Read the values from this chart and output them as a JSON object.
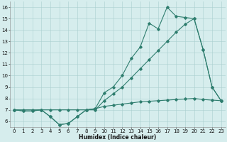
{
  "xlabel": "Humidex (Indice chaleur)",
  "x_values": [
    0,
    1,
    2,
    3,
    4,
    5,
    6,
    7,
    8,
    9,
    10,
    11,
    12,
    13,
    14,
    15,
    16,
    17,
    18,
    19,
    20,
    21,
    22,
    23
  ],
  "y_jagged": [
    7.0,
    6.9,
    6.9,
    7.0,
    6.4,
    5.7,
    5.8,
    6.4,
    7.0,
    7.1,
    8.5,
    9.0,
    10.0,
    11.5,
    12.5,
    14.6,
    14.1,
    16.0,
    15.2,
    15.1,
    15.0,
    12.3,
    9.0,
    7.8
  ],
  "y_diagonal": [
    7.0,
    7.0,
    7.0,
    7.0,
    7.0,
    7.0,
    7.0,
    7.0,
    7.0,
    7.0,
    7.8,
    8.4,
    9.0,
    9.8,
    10.6,
    11.4,
    12.2,
    13.0,
    13.8,
    14.5,
    15.0,
    12.3,
    9.0,
    7.8
  ],
  "y_flat": [
    7.0,
    6.9,
    6.9,
    7.0,
    6.4,
    5.7,
    5.8,
    6.4,
    7.0,
    7.1,
    7.3,
    7.4,
    7.5,
    7.6,
    7.7,
    7.75,
    7.8,
    7.85,
    7.9,
    7.95,
    8.0,
    7.9,
    7.85,
    7.8
  ],
  "color": "#2e7d6e",
  "bg_color": "#d6eded",
  "grid_color": "#aacfcf",
  "ylim": [
    5.5,
    16.5
  ],
  "xlim": [
    -0.5,
    23.5
  ],
  "yticks": [
    6,
    7,
    8,
    9,
    10,
    11,
    12,
    13,
    14,
    15,
    16
  ],
  "xticks": [
    0,
    1,
    2,
    3,
    4,
    5,
    6,
    7,
    8,
    9,
    10,
    11,
    12,
    13,
    14,
    15,
    16,
    17,
    18,
    19,
    20,
    21,
    22,
    23
  ],
  "tick_fontsize": 5,
  "xlabel_fontsize": 5.5
}
